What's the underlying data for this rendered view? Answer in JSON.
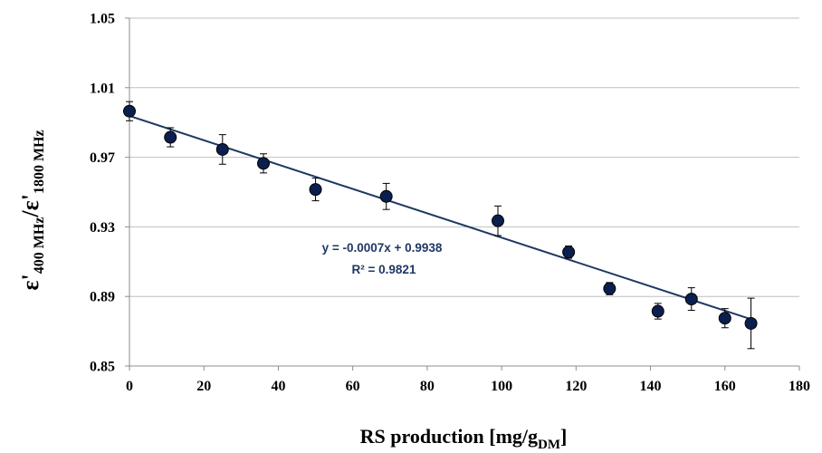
{
  "chart_data": {
    "type": "scatter",
    "xlabel": {
      "main": "RS production  [mg/g",
      "sub": "DM",
      "close": "]"
    },
    "ylabel": {
      "eps": "ε'",
      "sub1": "400 MHz",
      "slash": "/ε'",
      "sub2": "1800 MHz"
    },
    "xlim": [
      0,
      180
    ],
    "ylim": [
      0.85,
      1.05
    ],
    "x_ticks": [
      "0",
      "20",
      "40",
      "60",
      "80",
      "100",
      "120",
      "140",
      "160",
      "180"
    ],
    "y_ticks": [
      "0.85",
      "0.89",
      "0.93",
      "0.97",
      "1.01",
      "1.05"
    ],
    "grid": "horizontal",
    "points": [
      {
        "x": 0,
        "y": 0.9965,
        "err": 0.0055
      },
      {
        "x": 11,
        "y": 0.9815,
        "err": 0.0055
      },
      {
        "x": 25,
        "y": 0.9745,
        "err": 0.0085
      },
      {
        "x": 36,
        "y": 0.9665,
        "err": 0.0055
      },
      {
        "x": 50,
        "y": 0.9515,
        "err": 0.0065
      },
      {
        "x": 69,
        "y": 0.9475,
        "err": 0.0075
      },
      {
        "x": 99,
        "y": 0.9335,
        "err": 0.0085
      },
      {
        "x": 118,
        "y": 0.9155,
        "err": 0.0035
      },
      {
        "x": 129,
        "y": 0.8945,
        "err": 0.0035
      },
      {
        "x": 142,
        "y": 0.8815,
        "err": 0.0045
      },
      {
        "x": 151,
        "y": 0.8885,
        "err": 0.0065
      },
      {
        "x": 160,
        "y": 0.8775,
        "err": 0.0055
      },
      {
        "x": 167,
        "y": 0.8745,
        "err": 0.0145
      }
    ],
    "trendline": {
      "slope": -0.0007,
      "intercept": 0.9938,
      "x_range": [
        0,
        167
      ]
    },
    "annotations": [
      "y = -0.0007x + 0.9938",
      "R² = 0.9821"
    ],
    "colors": {
      "marker": "#0b1f4f",
      "trendline": "#1f3864",
      "grid": "#bfbfbf",
      "axis": "#8c8c8c",
      "equation": "#1f3864"
    }
  }
}
